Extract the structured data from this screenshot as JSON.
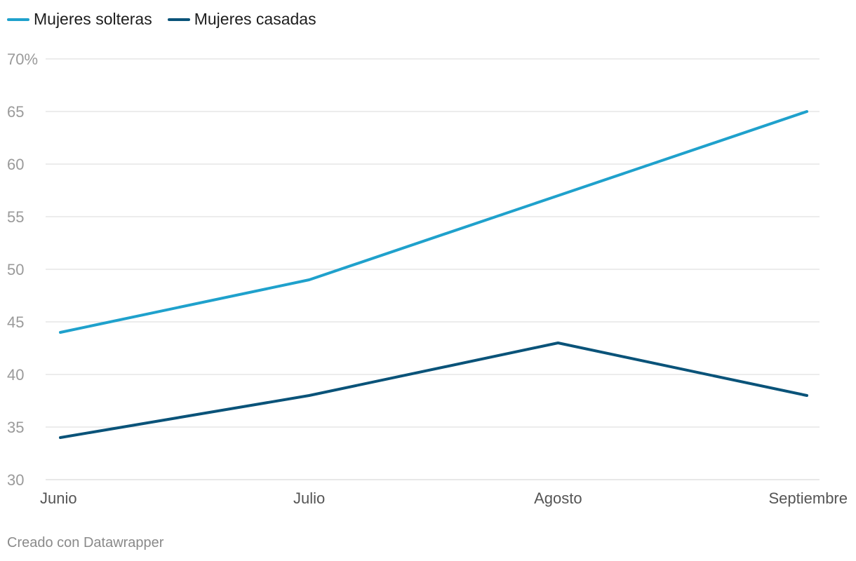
{
  "chart_data": {
    "type": "line",
    "categories": [
      "Junio",
      "Julio",
      "Agosto",
      "Septiembre"
    ],
    "series": [
      {
        "name": "Mujeres solteras",
        "values": [
          44,
          49,
          57,
          65
        ],
        "color": "#1fa1cc"
      },
      {
        "name": "Mujeres casadas",
        "values": [
          34,
          38,
          43,
          38
        ],
        "color": "#0a5379"
      }
    ],
    "ylim": [
      30,
      70
    ],
    "yticks": [
      "30",
      "35",
      "40",
      "45",
      "50",
      "55",
      "60",
      "65",
      "70%"
    ],
    "grid": true,
    "legend_position": "top-left",
    "gridline_color": "#e0e0e0"
  },
  "footer": {
    "credit": "Creado con Datawrapper"
  }
}
